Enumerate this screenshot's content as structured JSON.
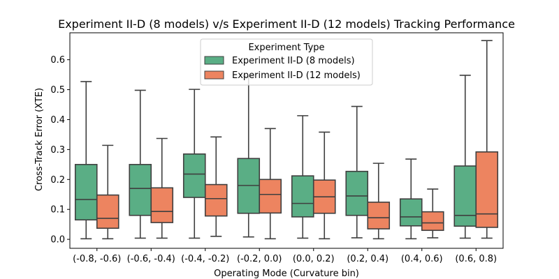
{
  "chart_data": {
    "type": "box",
    "title": "Experiment II-D (8 models) v/s Experiment II-D (12 models) Tracking Performance",
    "xlabel": "Operating Mode (Curvature bin)",
    "ylabel": "Cross-Track Error (XTE)",
    "ylim": [
      -0.03,
      0.69
    ],
    "yticks": [
      0.0,
      0.1,
      0.2,
      0.3,
      0.4,
      0.5,
      0.6
    ],
    "ytick_labels": [
      "0.0",
      "0.1",
      "0.2",
      "0.3",
      "0.4",
      "0.5",
      "0.6"
    ],
    "categories": [
      "(-0.8, -0.6)",
      "(-0.6, -0.4)",
      "(-0.4, -0.2)",
      "(-0.2, 0.0)",
      "(0.0, 0.2)",
      "(0.2, 0.4)",
      "(0.4, 0.6)",
      "(0.6, 0.8)"
    ],
    "legend": {
      "title": "Experiment Type",
      "placement": "top-center"
    },
    "series": [
      {
        "name": "Experiment II-D (8 models)",
        "color": "#5aae85",
        "boxes": [
          {
            "min": 0.002,
            "q1": 0.065,
            "median": 0.133,
            "q3": 0.25,
            "max": 0.527
          },
          {
            "min": 0.004,
            "q1": 0.08,
            "median": 0.17,
            "q3": 0.25,
            "max": 0.498
          },
          {
            "min": 0.004,
            "q1": 0.14,
            "median": 0.218,
            "q3": 0.285,
            "max": 0.501
          },
          {
            "min": 0.008,
            "q1": 0.087,
            "median": 0.18,
            "q3": 0.27,
            "max": 0.545
          },
          {
            "min": 0.004,
            "q1": 0.075,
            "median": 0.12,
            "q3": 0.212,
            "max": 0.413
          },
          {
            "min": 0.005,
            "q1": 0.08,
            "median": 0.145,
            "q3": 0.227,
            "max": 0.444
          },
          {
            "min": 0.002,
            "q1": 0.045,
            "median": 0.075,
            "q3": 0.135,
            "max": 0.268
          },
          {
            "min": 0.004,
            "q1": 0.044,
            "median": 0.08,
            "q3": 0.245,
            "max": 0.548
          }
        ]
      },
      {
        "name": "Experiment II-D (12 models)",
        "color": "#ed8460",
        "boxes": [
          {
            "min": 0.002,
            "q1": 0.037,
            "median": 0.07,
            "q3": 0.148,
            "max": 0.314
          },
          {
            "min": 0.004,
            "q1": 0.056,
            "median": 0.093,
            "q3": 0.172,
            "max": 0.337
          },
          {
            "min": 0.01,
            "q1": 0.078,
            "median": 0.136,
            "q3": 0.183,
            "max": 0.342
          },
          {
            "min": 0.002,
            "q1": 0.088,
            "median": 0.15,
            "q3": 0.2,
            "max": 0.37
          },
          {
            "min": 0.002,
            "q1": 0.087,
            "median": 0.142,
            "q3": 0.198,
            "max": 0.358
          },
          {
            "min": 0.002,
            "q1": 0.035,
            "median": 0.072,
            "q3": 0.124,
            "max": 0.254
          },
          {
            "min": 0.005,
            "q1": 0.03,
            "median": 0.055,
            "q3": 0.092,
            "max": 0.168
          },
          {
            "min": 0.004,
            "q1": 0.04,
            "median": 0.085,
            "q3": 0.292,
            "max": 0.664
          }
        ]
      }
    ]
  }
}
